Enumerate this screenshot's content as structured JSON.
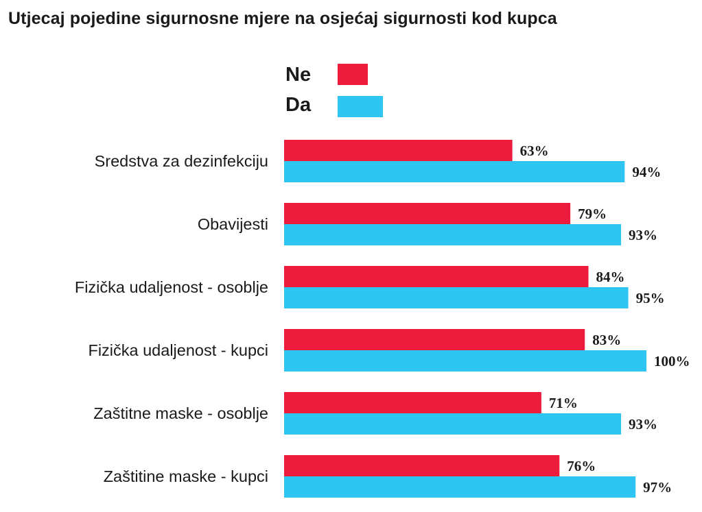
{
  "chart_data": {
    "type": "bar",
    "orientation": "horizontal",
    "title": "Utjecaj pojedine sigurnosne mjere na osjećaj sigurnosti kod kupca",
    "xlabel": "",
    "ylabel": "",
    "xlim": [
      0,
      100
    ],
    "grid": false,
    "legend": "top",
    "categories": [
      "Sredstva za dezinfekciju",
      "Obavijesti",
      "Fizička udaljenost - osoblje",
      "Fizička udaljenost - kupci",
      "Zaštitne maske - osoblje",
      "Zaštitine maske - kupci"
    ],
    "series": [
      {
        "name": "Ne",
        "color": "#ed1c3c",
        "values": [
          63,
          79,
          84,
          83,
          71,
          76
        ],
        "labels": [
          "63%",
          "79%",
          "84%",
          "83%",
          "71%",
          "76%"
        ]
      },
      {
        "name": "Da",
        "color": "#2ec5f2",
        "values": [
          94,
          93,
          95,
          100,
          93,
          97
        ],
        "labels": [
          "94%",
          "93%",
          "95%",
          "100%",
          "93%",
          "97%"
        ]
      }
    ]
  }
}
